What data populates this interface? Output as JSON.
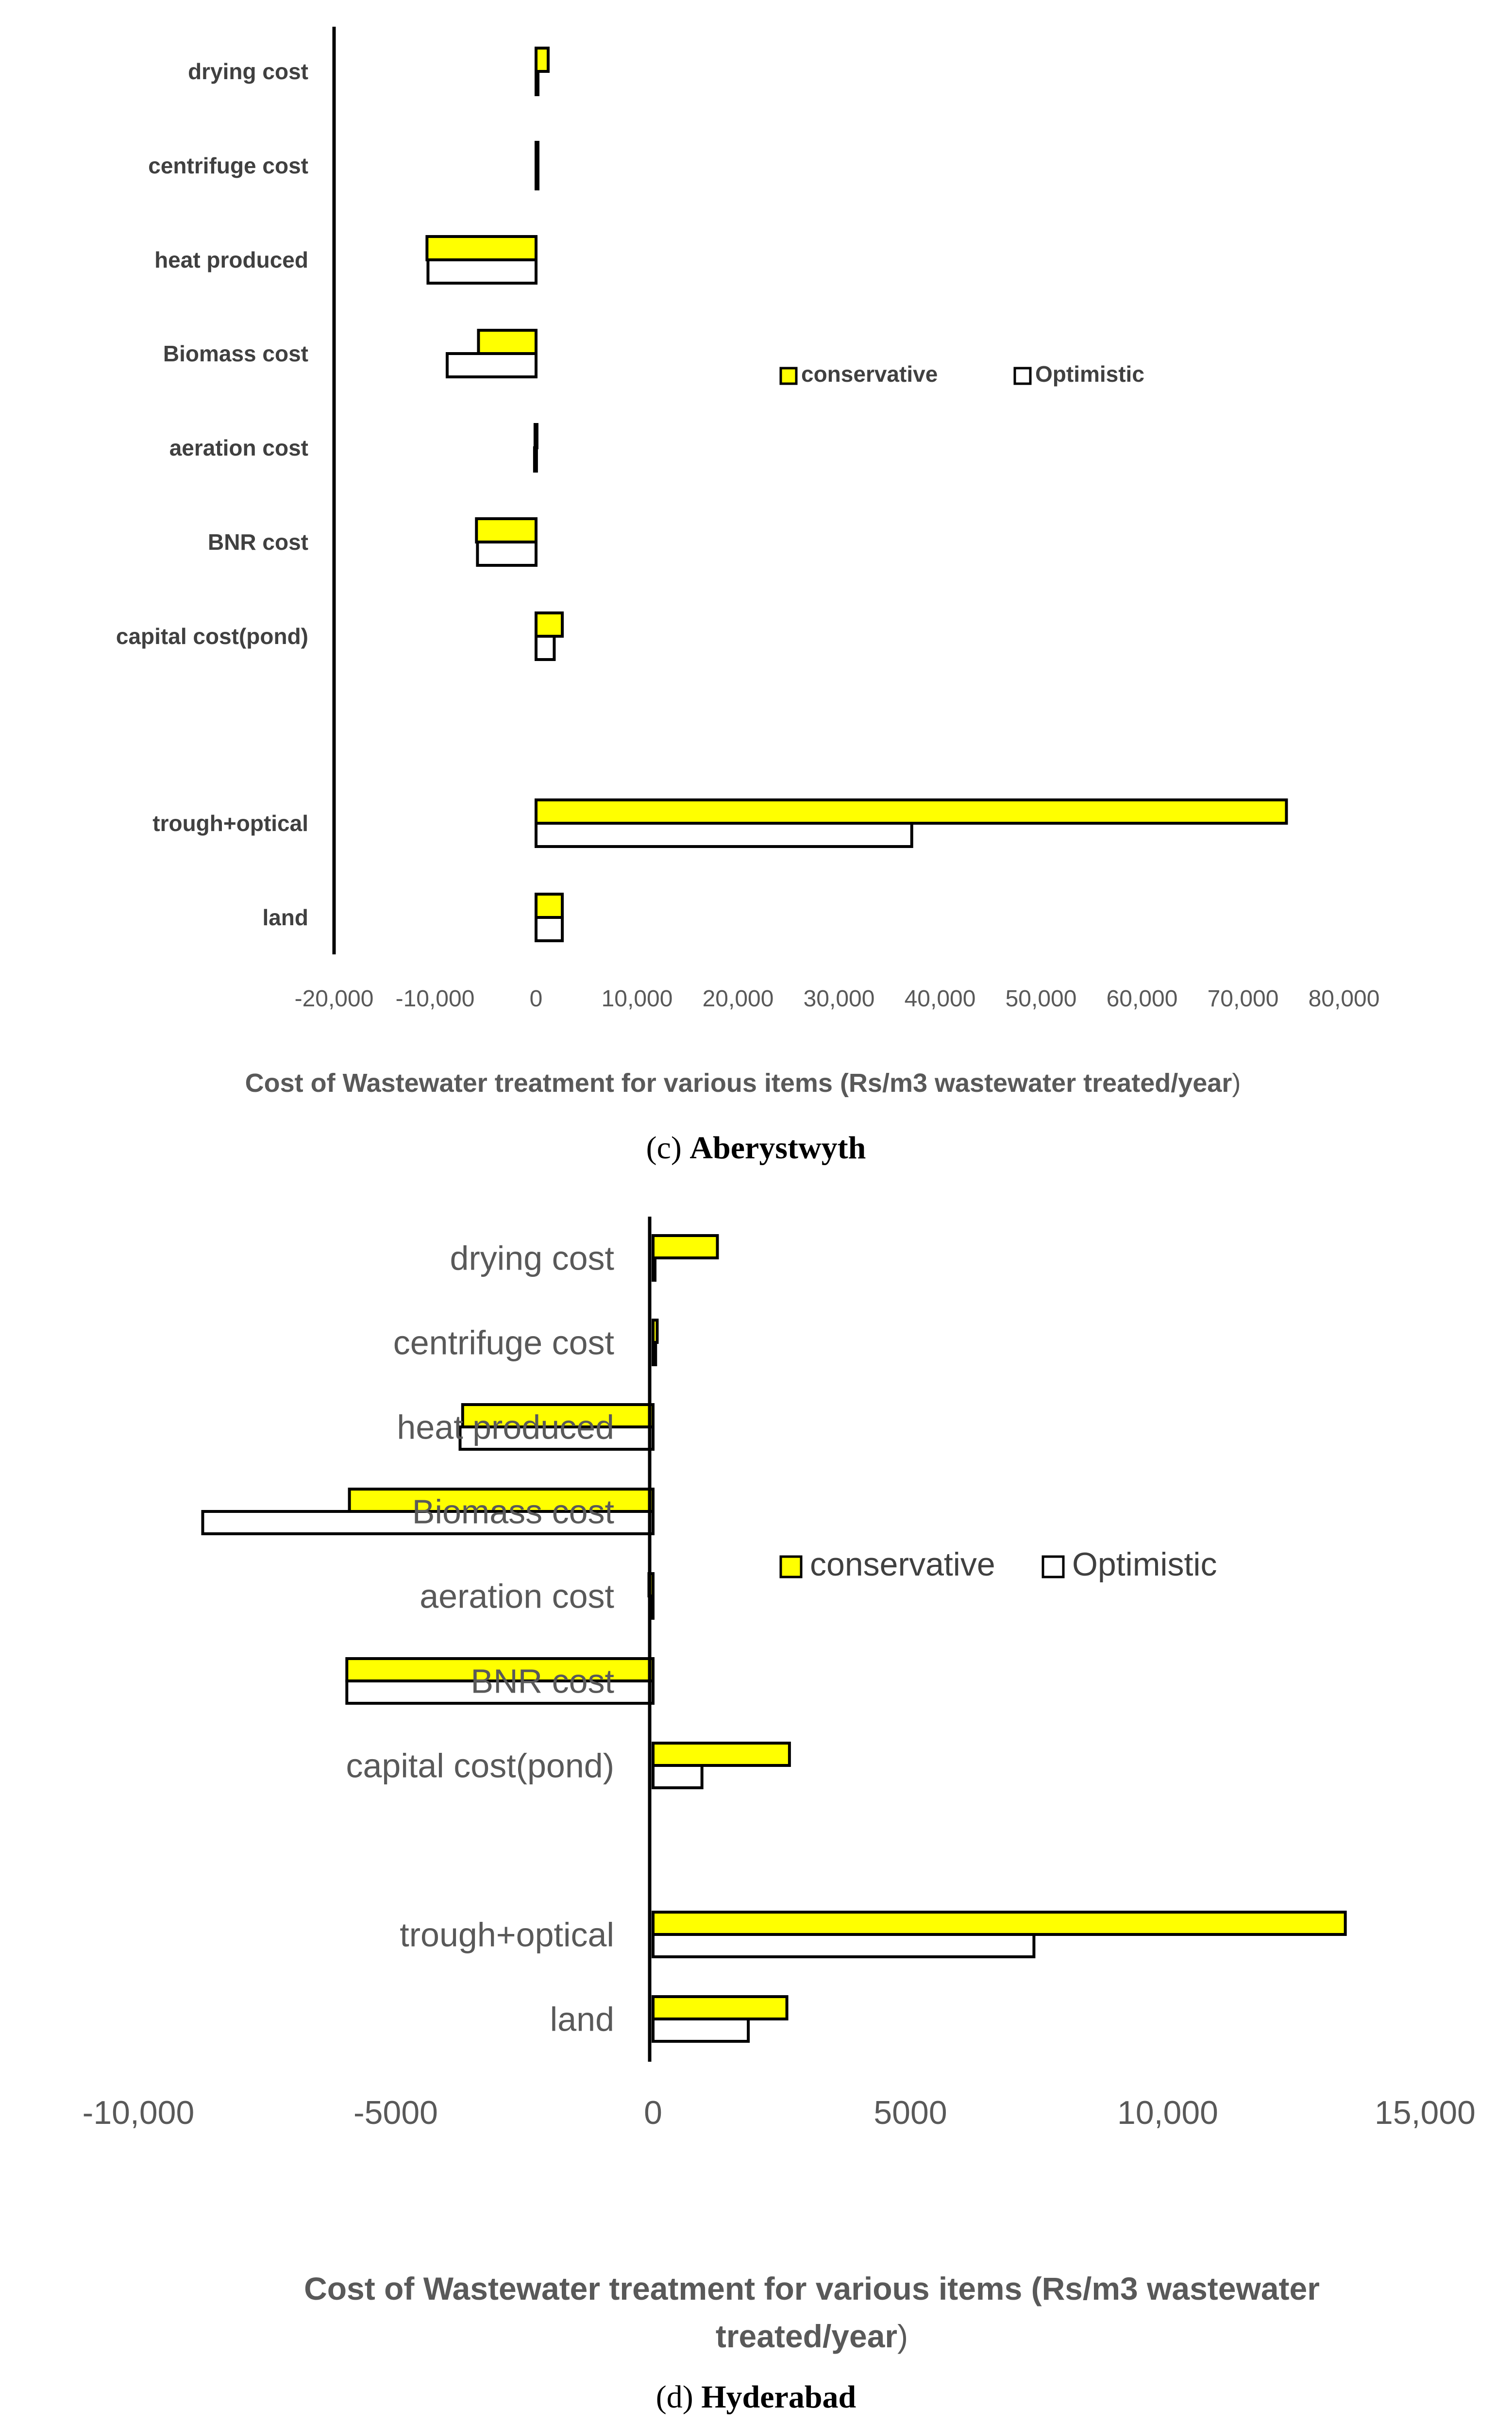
{
  "colors": {
    "conservative": "#ffff00",
    "optimistic": "#ffffff",
    "outline": "#000000"
  },
  "chart_data": [
    {
      "type": "bar",
      "orientation": "horizontal",
      "title": "",
      "categories": [
        "drying cost",
        "centrifuge cost",
        "heat produced",
        "Biomass cost",
        "aeration cost",
        "BNR cost",
        "capital cost(pond)",
        "trough+optical",
        "land"
      ],
      "series": [
        {
          "name": "conservative",
          "values": [
            1200,
            100,
            -10800,
            -5700,
            -100,
            -5900,
            2600,
            74300,
            2600
          ]
        },
        {
          "name": "Optimistic",
          "values": [
            100,
            100,
            -10700,
            -8800,
            -150,
            -5800,
            1800,
            37200,
            2600
          ]
        }
      ],
      "xlabel_main": "Cost of Wastewater treatment for various items (Rs/m3 wastewater treated/year",
      "xlabel_paren": ")",
      "xlim": [
        -20000,
        80000
      ],
      "xticks": [
        -20000,
        -10000,
        0,
        10000,
        20000,
        30000,
        40000,
        50000,
        60000,
        70000,
        80000
      ],
      "xtick_labels": [
        "-20,000",
        "-10,000",
        "0",
        "10,000",
        "20,000",
        "30,000",
        "40,000",
        "50,000",
        "60,000",
        "70,000",
        "80,000"
      ],
      "caption_letter": "c",
      "caption_place": "Aberystwyth",
      "legend": [
        "conservative",
        "Optimistic"
      ],
      "legend_position": "right-middle"
    },
    {
      "type": "bar",
      "orientation": "horizontal",
      "title": "",
      "categories": [
        "drying cost",
        "centrifuge cost",
        "heat produced",
        "Biomass cost",
        "aeration cost",
        "BNR cost",
        "capital cost(pond)",
        "trough+optical",
        "land"
      ],
      "series": [
        {
          "name": "conservative",
          "values": [
            1250,
            80,
            -3700,
            -5900,
            -80,
            -5950,
            2650,
            13450,
            2600
          ]
        },
        {
          "name": "Optimistic",
          "values": [
            30,
            50,
            -3750,
            -8750,
            -50,
            -5950,
            950,
            7400,
            1850
          ]
        }
      ],
      "xlabel_main": "Cost of Wastewater treatment for various items (Rs/m3 wastewater treated/year",
      "xlabel_paren": ")",
      "xlim": [
        -10000,
        15000
      ],
      "xticks": [
        -10000,
        -5000,
        0,
        5000,
        10000,
        15000
      ],
      "xtick_labels": [
        "-10,000",
        "-5000",
        "0",
        "5000",
        "10,000",
        "15,000"
      ],
      "caption_letter": "d",
      "caption_place": "Hyderabad",
      "legend": [
        "conservative",
        "Optimistic"
      ],
      "legend_position": "right-middle"
    }
  ]
}
